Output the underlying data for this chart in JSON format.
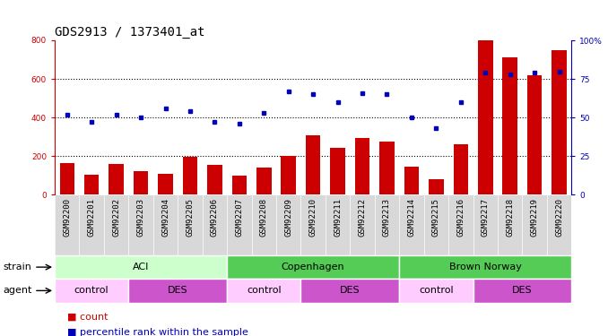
{
  "title": "GDS2913 / 1373401_at",
  "samples": [
    "GSM92200",
    "GSM92201",
    "GSM92202",
    "GSM92203",
    "GSM92204",
    "GSM92205",
    "GSM92206",
    "GSM92207",
    "GSM92208",
    "GSM92209",
    "GSM92210",
    "GSM92211",
    "GSM92212",
    "GSM92213",
    "GSM92214",
    "GSM92215",
    "GSM92216",
    "GSM92217",
    "GSM92218",
    "GSM92219",
    "GSM92220"
  ],
  "counts": [
    165,
    105,
    162,
    122,
    110,
    197,
    155,
    100,
    140,
    200,
    310,
    242,
    295,
    278,
    145,
    83,
    264,
    800,
    714,
    620,
    748
  ],
  "percentile": [
    52,
    47,
    52,
    50,
    56,
    54,
    47,
    46,
    53,
    67,
    65,
    60,
    66,
    65,
    50,
    43,
    60,
    79,
    78,
    79,
    80
  ],
  "bar_color": "#cc0000",
  "dot_color": "#0000bb",
  "ylim_left": [
    0,
    800
  ],
  "ylim_right": [
    0,
    100
  ],
  "yticks_left": [
    0,
    200,
    400,
    600,
    800
  ],
  "yticks_right": [
    0,
    25,
    50,
    75,
    100
  ],
  "ytick_right_labels": [
    "0",
    "25",
    "50",
    "75",
    "100%"
  ],
  "bg_color": "#d8d8d8",
  "title_fontsize": 10,
  "tick_fontsize": 6.5,
  "label_fontsize": 8,
  "legend_fontsize": 8,
  "strain_colors": [
    "#ccffcc",
    "#55cc55",
    "#55cc55"
  ],
  "strain_labels": [
    "ACI",
    "Copenhagen",
    "Brown Norway"
  ],
  "strain_ranges": [
    [
      0,
      6
    ],
    [
      7,
      13
    ],
    [
      14,
      20
    ]
  ],
  "agent_colors_list": [
    "#ffccff",
    "#cc55cc",
    "#ffccff",
    "#cc55cc",
    "#ffccff",
    "#cc55cc"
  ],
  "agent_labels_list": [
    "control",
    "DES",
    "control",
    "DES",
    "control",
    "DES"
  ],
  "agent_ranges": [
    [
      0,
      2
    ],
    [
      3,
      6
    ],
    [
      7,
      9
    ],
    [
      10,
      13
    ],
    [
      14,
      16
    ],
    [
      17,
      20
    ]
  ]
}
